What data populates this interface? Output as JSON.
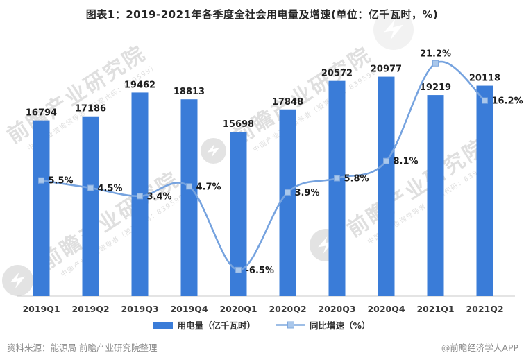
{
  "title": "图表1：2019-2021年各季度全社会用电量及增速(单位：亿千瓦时，%)",
  "watermark": {
    "main_text": "前瞻产业研究院",
    "sub_text": "中国产业咨询领导者（股票代码：839599）",
    "logo_name": "qianzhan-logo"
  },
  "chart_data": {
    "type": "bar+line",
    "title": "图表1：2019-2021年各季度全社会用电量及增速(单位：亿千瓦时，%)",
    "categories": [
      "2019Q1",
      "2019Q2",
      "2019Q3",
      "2019Q4",
      "2020Q1",
      "2020Q2",
      "2020Q3",
      "2020Q4",
      "2021Q1",
      "2021Q2"
    ],
    "series": [
      {
        "name": "用电量（亿千瓦时）",
        "type": "bar",
        "color": "#3A7CD8",
        "values": [
          16794,
          17186,
          19462,
          18813,
          15698,
          17848,
          20572,
          20977,
          19219,
          20118
        ]
      },
      {
        "name": "同比增速（%）",
        "type": "line",
        "color": "#76A3DF",
        "marker_fill": "#A9C7EB",
        "marker_stroke": "#7FA8DE",
        "values": [
          5.5,
          4.5,
          3.4,
          4.7,
          -6.5,
          3.9,
          5.8,
          8.1,
          21.2,
          16.2
        ]
      }
    ],
    "bar_axis_range": [
      0,
      23500
    ],
    "line_axis_range": [
      -10,
      25
    ],
    "grid": false,
    "axes_visible": false,
    "value_labels": true,
    "legend_position": "bottom"
  },
  "legend": {
    "items": [
      {
        "label": "用电量（亿千瓦时）",
        "swatch": "bar"
      },
      {
        "label": "同比增速（%）",
        "swatch": "line-marker"
      }
    ]
  },
  "footer": {
    "source": "资料来源：能源局 前瞻产业研究院整理",
    "credit": "@前瞻经济学人APP"
  },
  "colors": {
    "bar": "#3A7CD8",
    "line": "#76A3DF",
    "marker_fill": "#A9C7EB",
    "marker_stroke": "#7FA8DE",
    "axis": "#C8C8C8",
    "title_text": "#262626",
    "data_label": "#1f1f1f",
    "footer_text": "#8a8a8a",
    "watermark": "#dadada"
  }
}
